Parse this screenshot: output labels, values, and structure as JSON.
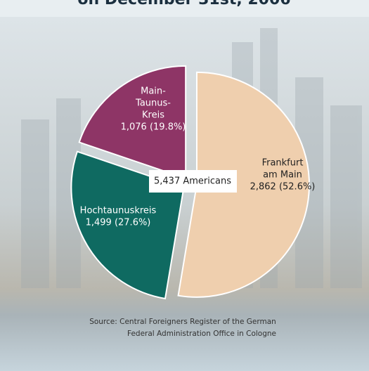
{
  "chart_data": {
    "type": "pie",
    "title": "on December 31st, 2006",
    "center_label": "5,437 Americans",
    "categories": [
      [
        "Frankfurt",
        "am Main"
      ],
      [
        "Hochtaunuskreis"
      ],
      [
        "Main-",
        "Taunus-",
        "Kreis"
      ]
    ],
    "values": [
      2862,
      1499,
      1076
    ],
    "value_labels": [
      "2,862 (52.6%)",
      "1,499 (27.6%)",
      "1,076 (19.8%)"
    ],
    "colors": [
      "#efcfae",
      "#0f6a61",
      "#8e3566"
    ],
    "source": [
      "Source: Central Foreigners Register of the German",
      "Federal Administration Office in Cologne"
    ]
  }
}
